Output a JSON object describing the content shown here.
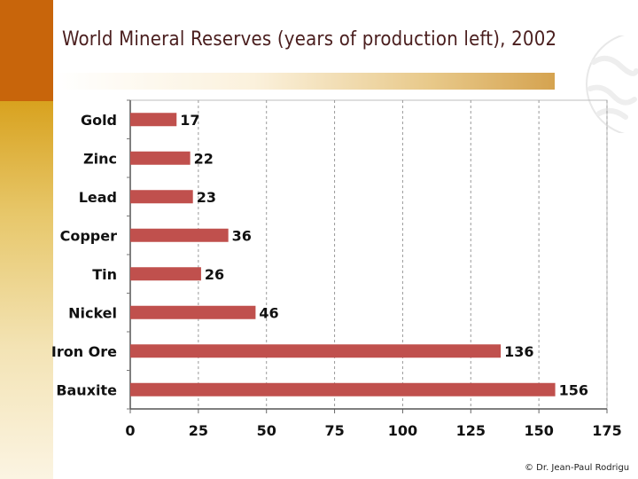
{
  "title": "World Mineral Reserves (years of production left), 2002",
  "credit": "© Dr. Jean-Paul Rodrigu",
  "colors": {
    "bar": "#c0504d",
    "accent_dark": "#c8650b",
    "accent_gold": "#d8a21f"
  },
  "chart_data": {
    "type": "bar",
    "orientation": "horizontal",
    "title": "World Mineral Reserves (years of production left), 2002",
    "categories": [
      "Gold",
      "Zinc",
      "Lead",
      "Copper",
      "Tin",
      "Nickel",
      "Iron Ore",
      "Bauxite"
    ],
    "values": [
      17,
      22,
      23,
      36,
      26,
      46,
      136,
      156
    ],
    "xlim": [
      0,
      175
    ],
    "xticks": [
      0,
      25,
      50,
      75,
      100,
      125,
      150,
      175
    ],
    "xlabel": "",
    "ylabel": "",
    "grid": "vertical dashed",
    "legend": "none"
  }
}
